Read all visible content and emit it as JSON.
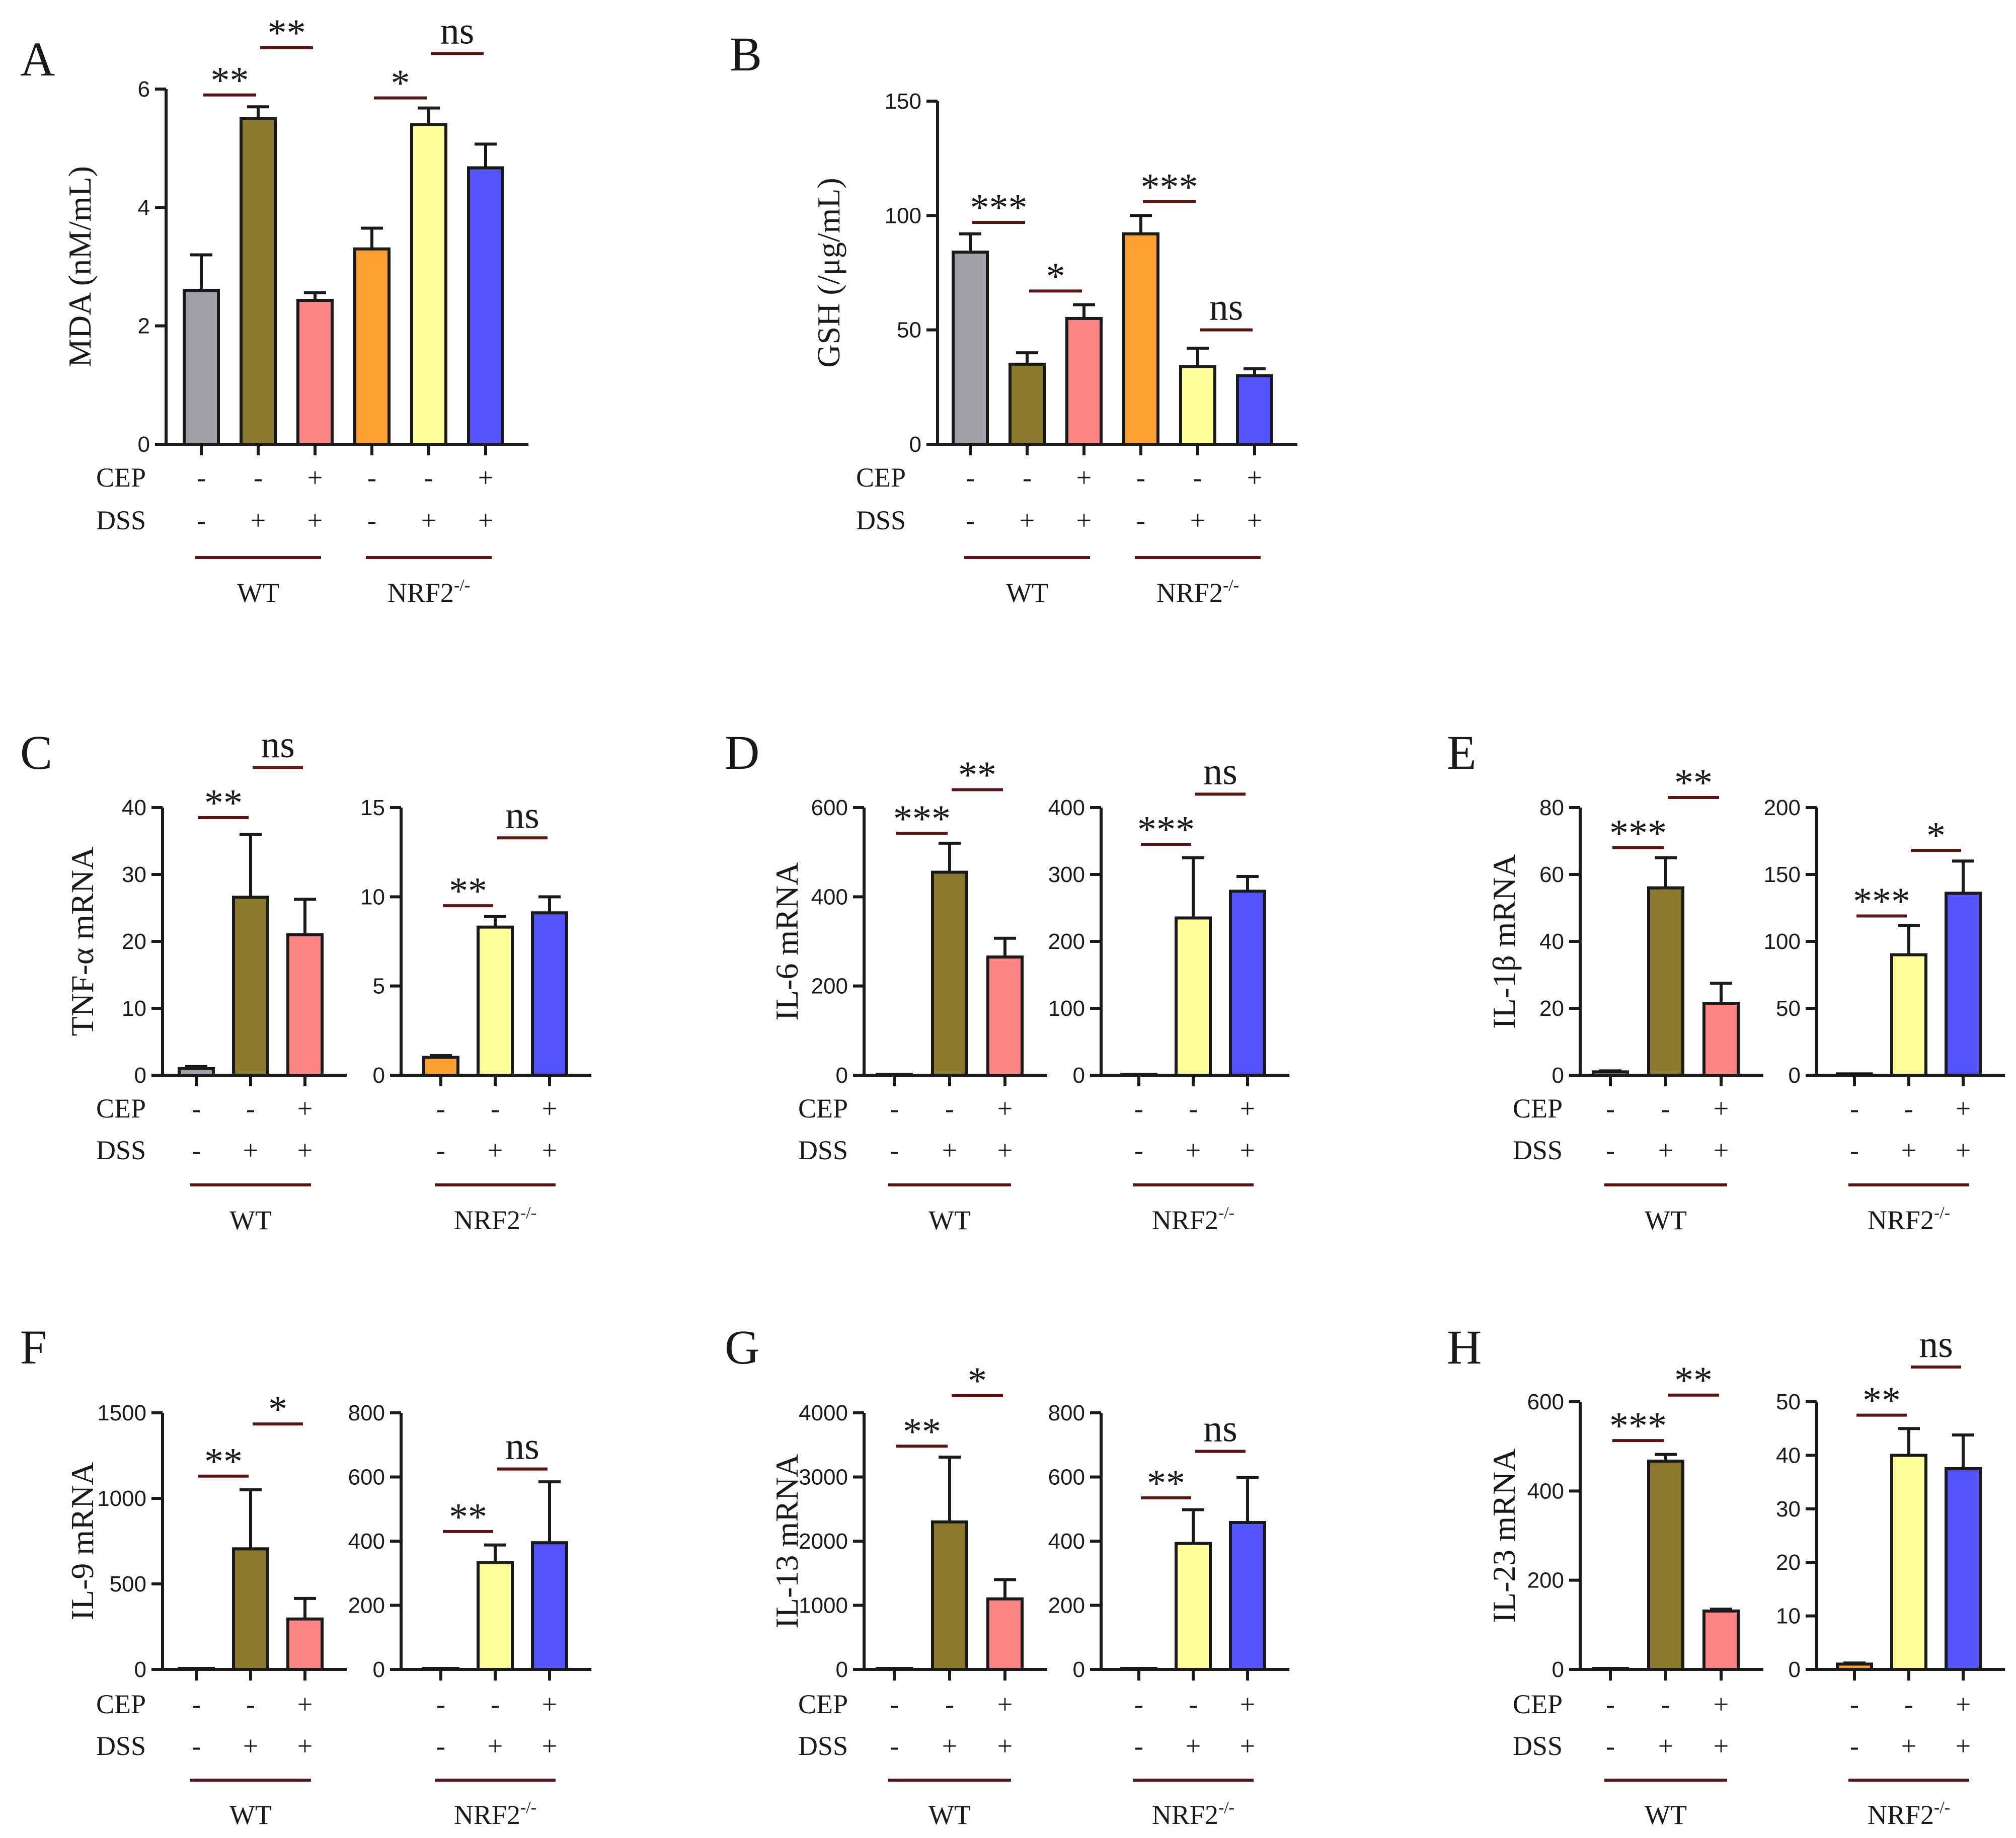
{
  "figure": {
    "treatment_rows": [
      "CEP",
      "DSS"
    ],
    "group_names": [
      "WT",
      "NRF2",
      "-/-"
    ],
    "colors": {
      "control_wt": "#a0a0a6",
      "dss_wt": "#8a782c",
      "dss_cep_wt": "#fd8585",
      "control_ko": "#fea131",
      "dss_ko": "#fffe99",
      "dss_cep_ko": "#5454fd"
    }
  },
  "chart_data": [
    {
      "id": "A",
      "type": "bar",
      "panel": "A",
      "ylabel": "MDA (nM/mL)",
      "ylim": [
        0,
        6
      ],
      "yticks": [
        0,
        2,
        4,
        6
      ],
      "bars": [
        {
          "value": 2.6,
          "err": 0.6,
          "color": "control_wt",
          "cep": "-",
          "dss": "-"
        },
        {
          "value": 5.5,
          "err": 0.2,
          "color": "dss_wt",
          "cep": "-",
          "dss": "+"
        },
        {
          "value": 2.43,
          "err": 0.13,
          "color": "dss_cep_wt",
          "cep": "+",
          "dss": "+"
        },
        {
          "value": 3.3,
          "err": 0.35,
          "color": "control_ko",
          "cep": "-",
          "dss": "-"
        },
        {
          "value": 5.4,
          "err": 0.28,
          "color": "dss_ko",
          "cep": "-",
          "dss": "+"
        },
        {
          "value": 4.67,
          "err": 0.4,
          "color": "dss_cep_ko",
          "cep": "+",
          "dss": "+"
        }
      ],
      "significance": [
        {
          "from": 0,
          "to": 1,
          "label": "**",
          "level": 5.9
        },
        {
          "from": 1,
          "to": 2,
          "label": "**",
          "level": 6.7
        },
        {
          "from": 3,
          "to": 4,
          "label": "*",
          "level": 5.85
        },
        {
          "from": 4,
          "to": 5,
          "label": "ns",
          "level": 6.6
        }
      ]
    },
    {
      "id": "B",
      "type": "bar",
      "panel": "B",
      "ylabel": "GSH (/μg/mL)",
      "ylim": [
        0,
        150
      ],
      "yticks": [
        0,
        50,
        100,
        150
      ],
      "bars": [
        {
          "value": 84,
          "err": 8,
          "color": "control_wt",
          "cep": "-",
          "dss": "-"
        },
        {
          "value": 35,
          "err": 5,
          "color": "dss_wt",
          "cep": "-",
          "dss": "+"
        },
        {
          "value": 55,
          "err": 6,
          "color": "dss_cep_wt",
          "cep": "+",
          "dss": "+"
        },
        {
          "value": 92,
          "err": 8,
          "color": "control_ko",
          "cep": "-",
          "dss": "-"
        },
        {
          "value": 34,
          "err": 8,
          "color": "dss_ko",
          "cep": "-",
          "dss": "+"
        },
        {
          "value": 30,
          "err": 3,
          "color": "dss_cep_ko",
          "cep": "+",
          "dss": "+"
        }
      ],
      "significance": [
        {
          "from": 0,
          "to": 1,
          "label": "***",
          "level": 97
        },
        {
          "from": 1,
          "to": 2,
          "label": "*",
          "level": 67
        },
        {
          "from": 3,
          "to": 4,
          "label": "***",
          "level": 106
        },
        {
          "from": 4,
          "to": 5,
          "label": "ns",
          "level": 50
        }
      ]
    },
    {
      "id": "C_WT",
      "type": "bar",
      "panel": "C",
      "ylabel": "TNF-α mRNA",
      "ylim": [
        0,
        40
      ],
      "yticks": [
        0,
        10,
        20,
        30,
        40
      ],
      "bars": [
        {
          "value": 1,
          "err": 0.3,
          "color": "control_wt",
          "cep": "-",
          "dss": "-"
        },
        {
          "value": 26.6,
          "err": 9.4,
          "color": "dss_wt",
          "cep": "-",
          "dss": "+"
        },
        {
          "value": 21,
          "err": 5.3,
          "color": "dss_cep_wt",
          "cep": "+",
          "dss": "+"
        }
      ],
      "significance": [
        {
          "from": 0,
          "to": 1,
          "label": "**",
          "level": 38.5
        },
        {
          "from": 1,
          "to": 2,
          "label": "ns",
          "level": 46
        }
      ]
    },
    {
      "id": "C_KO",
      "type": "bar",
      "panel": "",
      "ylabel": "",
      "ylim": [
        0,
        15
      ],
      "yticks": [
        0,
        5,
        10,
        15
      ],
      "bars": [
        {
          "value": 1,
          "err": 0.1,
          "color": "control_ko",
          "cep": "-",
          "dss": "-"
        },
        {
          "value": 8.3,
          "err": 0.6,
          "color": "dss_ko",
          "cep": "-",
          "dss": "+"
        },
        {
          "value": 9.1,
          "err": 0.9,
          "color": "dss_cep_ko",
          "cep": "+",
          "dss": "+"
        }
      ],
      "significance": [
        {
          "from": 0,
          "to": 1,
          "label": "**",
          "level": 9.5
        },
        {
          "from": 1,
          "to": 2,
          "label": "ns",
          "level": 13.3
        }
      ]
    },
    {
      "id": "D_WT",
      "type": "bar",
      "panel": "D",
      "ylabel": "IL-6 mRNA",
      "ylim": [
        0,
        600
      ],
      "yticks": [
        0,
        200,
        400,
        600
      ],
      "bars": [
        {
          "value": 1,
          "err": 0,
          "color": "control_wt",
          "cep": "-",
          "dss": "-"
        },
        {
          "value": 455,
          "err": 65,
          "color": "dss_wt",
          "cep": "-",
          "dss": "+"
        },
        {
          "value": 265,
          "err": 42,
          "color": "dss_cep_wt",
          "cep": "+",
          "dss": "+"
        }
      ],
      "significance": [
        {
          "from": 0,
          "to": 1,
          "label": "***",
          "level": 542
        },
        {
          "from": 1,
          "to": 2,
          "label": "**",
          "level": 640
        }
      ]
    },
    {
      "id": "D_KO",
      "type": "bar",
      "panel": "",
      "ylabel": "",
      "ylim": [
        0,
        400
      ],
      "yticks": [
        0,
        100,
        200,
        300,
        400
      ],
      "bars": [
        {
          "value": 1,
          "err": 0,
          "color": "control_ko",
          "cep": "-",
          "dss": "-"
        },
        {
          "value": 235,
          "err": 90,
          "color": "dss_ko",
          "cep": "-",
          "dss": "+"
        },
        {
          "value": 275,
          "err": 22,
          "color": "dss_cep_ko",
          "cep": "+",
          "dss": "+"
        }
      ],
      "significance": [
        {
          "from": 0,
          "to": 1,
          "label": "***",
          "level": 345
        },
        {
          "from": 1,
          "to": 2,
          "label": "ns",
          "level": 420
        }
      ]
    },
    {
      "id": "E_WT",
      "type": "bar",
      "panel": "E",
      "ylabel": "IL-1β mRNA",
      "ylim": [
        0,
        80
      ],
      "yticks": [
        0,
        20,
        40,
        60,
        80
      ],
      "bars": [
        {
          "value": 1,
          "err": 0.3,
          "color": "control_wt",
          "cep": "-",
          "dss": "-"
        },
        {
          "value": 56,
          "err": 9,
          "color": "dss_wt",
          "cep": "-",
          "dss": "+"
        },
        {
          "value": 21.5,
          "err": 6,
          "color": "dss_cep_wt",
          "cep": "+",
          "dss": "+"
        }
      ],
      "significance": [
        {
          "from": 0,
          "to": 1,
          "label": "***",
          "level": 68
        },
        {
          "from": 1,
          "to": 2,
          "label": "**",
          "level": 83
        }
      ]
    },
    {
      "id": "E_KO",
      "type": "bar",
      "panel": "",
      "ylabel": "",
      "ylim": [
        0,
        200
      ],
      "yticks": [
        0,
        50,
        100,
        150,
        200
      ],
      "bars": [
        {
          "value": 1,
          "err": 0,
          "color": "control_ko",
          "cep": "-",
          "dss": "-"
        },
        {
          "value": 90,
          "err": 22,
          "color": "dss_ko",
          "cep": "-",
          "dss": "+"
        },
        {
          "value": 136,
          "err": 24,
          "color": "dss_cep_ko",
          "cep": "+",
          "dss": "+"
        }
      ],
      "significance": [
        {
          "from": 0,
          "to": 1,
          "label": "***",
          "level": 119
        },
        {
          "from": 1,
          "to": 2,
          "label": "*",
          "level": 168
        }
      ]
    },
    {
      "id": "F_WT",
      "type": "bar",
      "panel": "F",
      "ylabel": "IL-9 mRNA",
      "ylim": [
        0,
        1500
      ],
      "yticks": [
        0,
        500,
        1000,
        1500
      ],
      "bars": [
        {
          "value": 1,
          "err": 0,
          "color": "control_wt",
          "cep": "-",
          "dss": "-"
        },
        {
          "value": 705,
          "err": 345,
          "color": "dss_wt",
          "cep": "-",
          "dss": "+"
        },
        {
          "value": 295,
          "err": 120,
          "color": "dss_cep_wt",
          "cep": "+",
          "dss": "+"
        }
      ],
      "significance": [
        {
          "from": 0,
          "to": 1,
          "label": "**",
          "level": 1130
        },
        {
          "from": 1,
          "to": 2,
          "label": "*",
          "level": 1435
        }
      ]
    },
    {
      "id": "F_KO",
      "type": "bar",
      "panel": "",
      "ylabel": "",
      "ylim": [
        0,
        800
      ],
      "yticks": [
        0,
        200,
        400,
        600,
        800
      ],
      "bars": [
        {
          "value": 1,
          "err": 0,
          "color": "control_ko",
          "cep": "-",
          "dss": "-"
        },
        {
          "value": 333,
          "err": 55,
          "color": "dss_ko",
          "cep": "-",
          "dss": "+"
        },
        {
          "value": 395,
          "err": 190,
          "color": "dss_cep_ko",
          "cep": "+",
          "dss": "+"
        }
      ],
      "significance": [
        {
          "from": 0,
          "to": 1,
          "label": "**",
          "level": 430
        },
        {
          "from": 1,
          "to": 2,
          "label": "ns",
          "level": 625
        }
      ]
    },
    {
      "id": "G_WT",
      "type": "bar",
      "panel": "G",
      "ylabel": "IL-13 mRNA",
      "ylim": [
        0,
        4000
      ],
      "yticks": [
        0,
        1000,
        2000,
        3000,
        4000
      ],
      "bars": [
        {
          "value": 1,
          "err": 0,
          "color": "control_wt",
          "cep": "-",
          "dss": "-"
        },
        {
          "value": 2300,
          "err": 1010,
          "color": "dss_wt",
          "cep": "-",
          "dss": "+"
        },
        {
          "value": 1100,
          "err": 300,
          "color": "dss_cep_wt",
          "cep": "+",
          "dss": "+"
        }
      ],
      "significance": [
        {
          "from": 0,
          "to": 1,
          "label": "**",
          "level": 3480
        },
        {
          "from": 1,
          "to": 2,
          "label": "*",
          "level": 4270
        }
      ]
    },
    {
      "id": "G_KO",
      "type": "bar",
      "panel": "",
      "ylabel": "",
      "ylim": [
        0,
        800
      ],
      "yticks": [
        0,
        200,
        400,
        600,
        800
      ],
      "bars": [
        {
          "value": 1,
          "err": 0,
          "color": "control_ko",
          "cep": "-",
          "dss": "-"
        },
        {
          "value": 393,
          "err": 105,
          "color": "dss_ko",
          "cep": "-",
          "dss": "+"
        },
        {
          "value": 458,
          "err": 140,
          "color": "dss_cep_ko",
          "cep": "+",
          "dss": "+"
        }
      ],
      "significance": [
        {
          "from": 0,
          "to": 1,
          "label": "**",
          "level": 535
        },
        {
          "from": 1,
          "to": 2,
          "label": "ns",
          "level": 680
        }
      ]
    },
    {
      "id": "H_WT",
      "type": "bar",
      "panel": "H",
      "ylabel": "IL-23 mRNA",
      "ylim": [
        0,
        600
      ],
      "yticks": [
        0,
        200,
        400,
        600
      ],
      "bars": [
        {
          "value": 1,
          "err": 0,
          "color": "control_wt",
          "cep": "-",
          "dss": "-"
        },
        {
          "value": 467,
          "err": 15,
          "color": "dss_wt",
          "cep": "-",
          "dss": "+"
        },
        {
          "value": 131,
          "err": 4,
          "color": "dss_cep_wt",
          "cep": "+",
          "dss": "+"
        }
      ],
      "significance": [
        {
          "from": 0,
          "to": 1,
          "label": "***",
          "level": 513
        },
        {
          "from": 1,
          "to": 2,
          "label": "**",
          "level": 615
        }
      ]
    },
    {
      "id": "H_KO",
      "type": "bar",
      "panel": "",
      "ylabel": "",
      "ylim": [
        0,
        50
      ],
      "yticks": [
        0,
        10,
        20,
        30,
        40,
        50
      ],
      "bars": [
        {
          "value": 1,
          "err": 0.2,
          "color": "control_ko",
          "cep": "-",
          "dss": "-"
        },
        {
          "value": 40,
          "err": 5,
          "color": "dss_ko",
          "cep": "-",
          "dss": "+"
        },
        {
          "value": 37.5,
          "err": 6.3,
          "color": "dss_cep_ko",
          "cep": "+",
          "dss": "+"
        }
      ],
      "significance": [
        {
          "from": 0,
          "to": 1,
          "label": "**",
          "level": 47.5
        },
        {
          "from": 1,
          "to": 2,
          "label": "ns",
          "level": 56.5
        }
      ]
    }
  ]
}
